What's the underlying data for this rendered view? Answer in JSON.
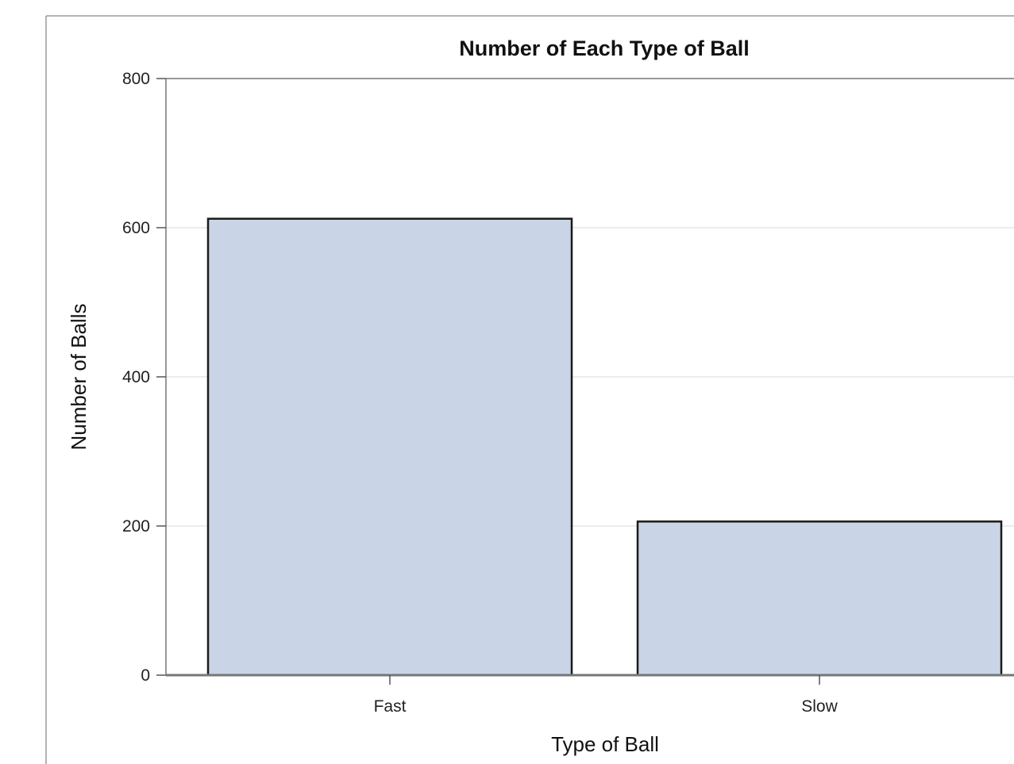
{
  "chart_data": {
    "type": "bar",
    "title": "Number of Each Type of Ball",
    "xlabel": "Type of Ball",
    "ylabel": "Number of Balls",
    "categories": [
      "Fast",
      "Slow"
    ],
    "values": [
      612,
      206
    ],
    "ylim": [
      0,
      800
    ],
    "yticks": [
      0,
      200,
      400,
      600,
      800
    ],
    "grid": true,
    "legend": "none",
    "colors": {
      "bar_fill": "#c9d5e6",
      "bar_stroke": "#1a1a1a"
    }
  }
}
